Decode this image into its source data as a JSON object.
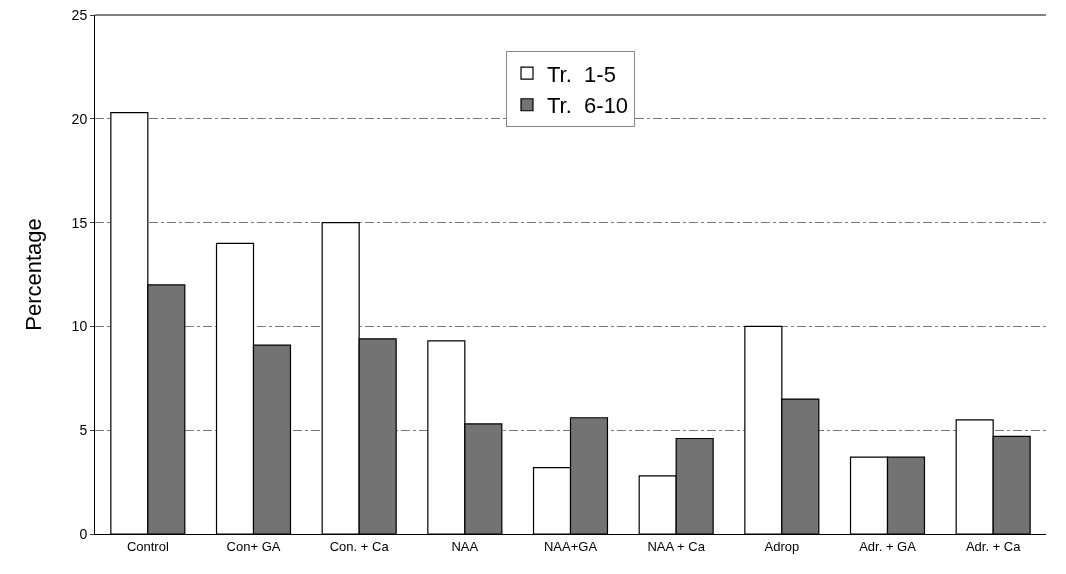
{
  "chart_data": {
    "type": "bar",
    "ylabel": "Percentage",
    "categories": [
      "Control",
      "Con+ GA",
      "Con. + Ca",
      "NAA",
      "NAA+GA",
      "NAA + Ca",
      "Adrop",
      "Adr. + GA",
      "Adr. + Ca"
    ],
    "series": [
      {
        "name": "Tr.  1-5",
        "color": "#ffffff",
        "values": [
          20.3,
          14.0,
          15.0,
          9.3,
          3.2,
          2.8,
          10.0,
          3.7,
          5.5
        ]
      },
      {
        "name": "Tr.  6-10",
        "color": "#737373",
        "values": [
          12.0,
          9.1,
          9.4,
          5.3,
          5.6,
          4.6,
          6.5,
          3.7,
          4.7
        ]
      }
    ],
    "ylim": [
      0,
      25
    ],
    "yticks": [
      0,
      5,
      10,
      15,
      20,
      25
    ],
    "grid": "y",
    "legend": "top"
  }
}
